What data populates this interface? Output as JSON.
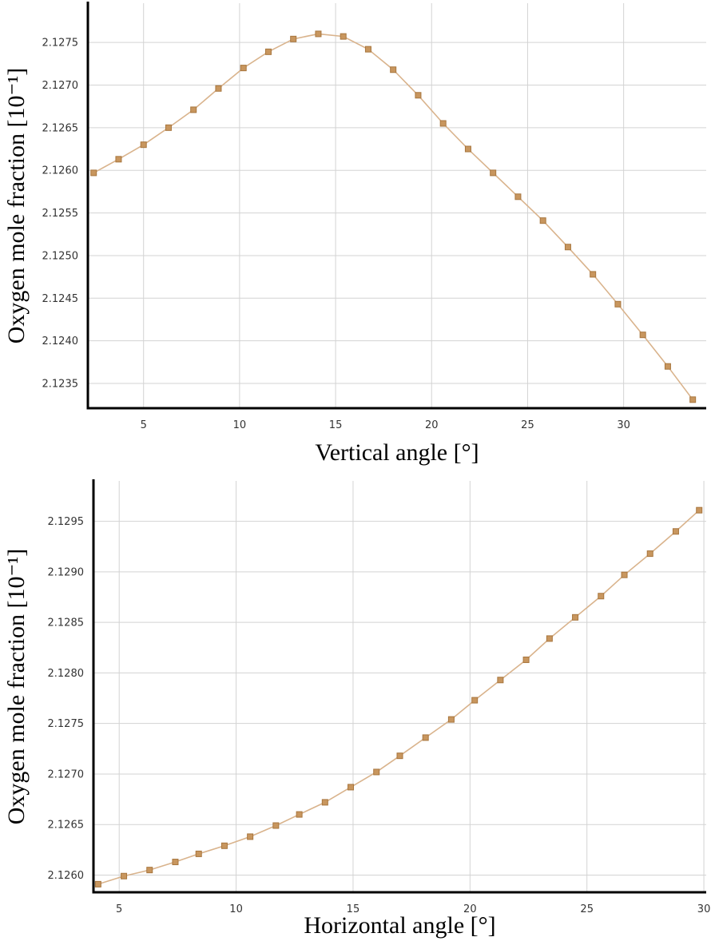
{
  "colors": {
    "line": "#d9b38c",
    "marker_fill": "#c8965e",
    "marker_stroke": "#a8763e",
    "grid": "#d3d3d3",
    "axis": "#000000",
    "background": "#ffffff"
  },
  "chart_data": [
    {
      "type": "line",
      "xlabel": "Vertical angle [°]",
      "ylabel": "Oxygen mole fraction [10⁻¹]",
      "xlim": [
        2.1,
        34.3
      ],
      "ylim": [
        2.12321,
        2.12796
      ],
      "xticks": [
        5,
        10,
        15,
        20,
        25,
        30
      ],
      "xtick_labels": [
        "5",
        "10",
        "15",
        "20",
        "25",
        "30"
      ],
      "yticks": [
        2.1235,
        2.124,
        2.1245,
        2.125,
        2.1255,
        2.126,
        2.1265,
        2.127,
        2.1275
      ],
      "ytick_labels": [
        "2.1235",
        "2.1240",
        "2.1245",
        "2.1250",
        "2.1255",
        "2.1260",
        "2.1265",
        "2.1270",
        "2.1275"
      ],
      "grid": true,
      "series": [
        {
          "x": [
            2.4,
            3.7,
            5.0,
            6.3,
            7.6,
            8.9,
            10.2,
            11.5,
            12.8,
            14.1,
            15.4,
            16.7,
            18.0,
            19.3,
            20.6,
            21.9,
            23.2,
            24.5,
            25.8,
            27.1,
            28.4,
            29.7,
            31.0,
            32.3,
            33.6
          ],
          "y": [
            2.12597,
            2.12613,
            2.1263,
            2.1265,
            2.12671,
            2.12696,
            2.1272,
            2.12739,
            2.12754,
            2.1276,
            2.12757,
            2.12742,
            2.12718,
            2.12688,
            2.12655,
            2.12625,
            2.12597,
            2.12569,
            2.12541,
            2.1251,
            2.12478,
            2.12443,
            2.12407,
            2.1237,
            2.12331
          ]
        }
      ]
    },
    {
      "type": "line",
      "xlabel": "Horizontal angle [°]",
      "ylabel": "Oxygen mole fraction [10⁻¹]",
      "xlim": [
        3.9,
        30.1
      ],
      "ylim": [
        2.12583,
        2.1299
      ],
      "xticks": [
        5,
        10,
        15,
        20,
        25,
        30
      ],
      "xtick_labels": [
        "5",
        "10",
        "15",
        "20",
        "25",
        "30"
      ],
      "yticks": [
        2.126,
        2.1265,
        2.127,
        2.1275,
        2.128,
        2.1285,
        2.129,
        2.1295
      ],
      "ytick_labels": [
        "2.1260",
        "2.1265",
        "2.1270",
        "2.1275",
        "2.1280",
        "2.1285",
        "2.1290",
        "2.1295"
      ],
      "grid": true,
      "series": [
        {
          "x": [
            4.1,
            5.2,
            6.3,
            7.4,
            8.4,
            9.5,
            10.6,
            11.7,
            12.7,
            13.8,
            14.9,
            16.0,
            17.0,
            18.1,
            19.2,
            20.2,
            21.3,
            22.4,
            23.4,
            24.5,
            25.6,
            26.6,
            27.7,
            28.8,
            29.8
          ],
          "y": [
            2.12591,
            2.12599,
            2.12605,
            2.12613,
            2.12621,
            2.12629,
            2.12638,
            2.12649,
            2.1266,
            2.12672,
            2.12687,
            2.12702,
            2.12718,
            2.12736,
            2.12754,
            2.12773,
            2.12793,
            2.12813,
            2.12834,
            2.12855,
            2.12876,
            2.12897,
            2.12918,
            2.1294,
            2.12961
          ]
        }
      ]
    }
  ]
}
